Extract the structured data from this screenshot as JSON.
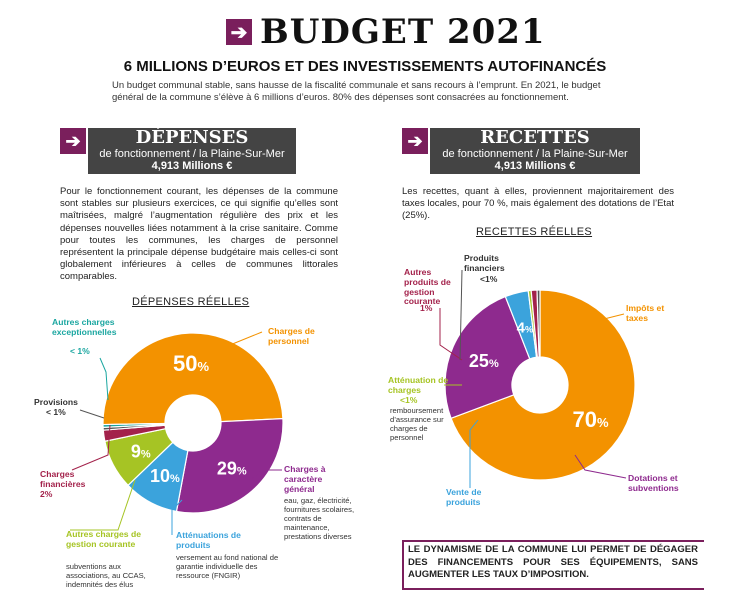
{
  "header": {
    "title": "BUDGET 2021",
    "subtitle": "6 MILLIONS D’EUROS ET DES INVESTISSEMENTS AUTOFINANCÉS",
    "intro": "Un budget communal stable, sans hausse de la fiscalité communale et sans recours à l’emprunt. En 2021, le budget général de la commune s’élève à 6 millions d’euros. 80% des dépenses sont consacrées au fonctionnement."
  },
  "depenses": {
    "title": "DÉPENSES",
    "subtitle": "de fonctionnement / la Plaine-Sur-Mer",
    "amount": "4,913 Millions €",
    "text": "Pour le fonctionnement courant, les dépenses de la commune sont stables sur plusieurs exercices, ce qui signifie qu’elles sont maîtrisées, malgré l’augmentation régulière des prix et les dépenses nouvelles liées notamment à la crise sanitaire. Comme pour toutes les communes, les charges de personnel représentent la principale dépense budgétaire mais celles-ci sont globalement inférieures à celles de communes littorales comparables."
  },
  "recettes": {
    "title": "RECETTES",
    "subtitle": "de fonctionnement / la Plaine-Sur-Mer",
    "amount": "4,913 Millions €",
    "text": "Les recettes, quant à elles, proviennent majoritairement des taxes locales, pour 70 %, mais également des dotations de l’Etat (25%)."
  },
  "chart_data": [
    {
      "type": "pie",
      "title": "DÉPENSES RÉELLES",
      "slices": [
        {
          "label": "Charges de personnel",
          "value": 50,
          "value_label": "50%",
          "color": "#f39200"
        },
        {
          "label": "Charges à caractère général",
          "value": 29,
          "value_label": "29%",
          "color": "#8e2a8e",
          "detail": "eau, gaz, électricité, fournitures scolaires, contrats de maintenance, prestations diverses"
        },
        {
          "label": "Atténuations de produits",
          "value": 10,
          "value_label": "10%",
          "color": "#3ba3dc",
          "detail": "versement au fond national de garantie individuelle des ressource (FNGIR)"
        },
        {
          "label": "Autres charges de gestion courante",
          "value": 9,
          "value_label": "9%",
          "color": "#a6c424",
          "detail": "subventions aux associations, au CCAS, indemnités des élus"
        },
        {
          "label": "Charges financières",
          "value": 2,
          "value_label": "2%",
          "color": "#a3224b"
        },
        {
          "label": "Provisions",
          "value": 0.5,
          "value_label": "< 1%",
          "color": "#555555"
        },
        {
          "label": "Autres charges exceptionnelles",
          "value": 0.5,
          "value_label": "< 1%",
          "color": "#1aa6a0"
        }
      ]
    },
    {
      "type": "pie",
      "title": "RECETTES RÉELLES",
      "slices": [
        {
          "label": "Impôts et taxes",
          "value": 70,
          "value_label": "70%",
          "color": "#f39200"
        },
        {
          "label": "Dotations et subventions",
          "value": 25,
          "value_label": "25%",
          "color": "#8e2a8e"
        },
        {
          "label": "Vente de produits",
          "value": 4,
          "value_label": "4%",
          "color": "#3ba3dc"
        },
        {
          "label": "Atténuation de charges",
          "value": 0.5,
          "value_label": "<1%",
          "color": "#a6c424",
          "detail": "remboursement d’assurance sur charges de personnel"
        },
        {
          "label": "Autres produits de gestion courante",
          "value": 1,
          "value_label": "1%",
          "color": "#a3224b"
        },
        {
          "label": "Produits financiers",
          "value": 0.5,
          "value_label": "<1%",
          "color": "#555555"
        }
      ]
    }
  ],
  "conclusion": "LE DYNAMISME DE LA COMMUNE LUI PERMET DE DÉGAGER DES FINANCEMENTS POUR SES ÉQUIPEMENTS, SANS AUGMENTER LES TAUX D’IMPOSITION."
}
